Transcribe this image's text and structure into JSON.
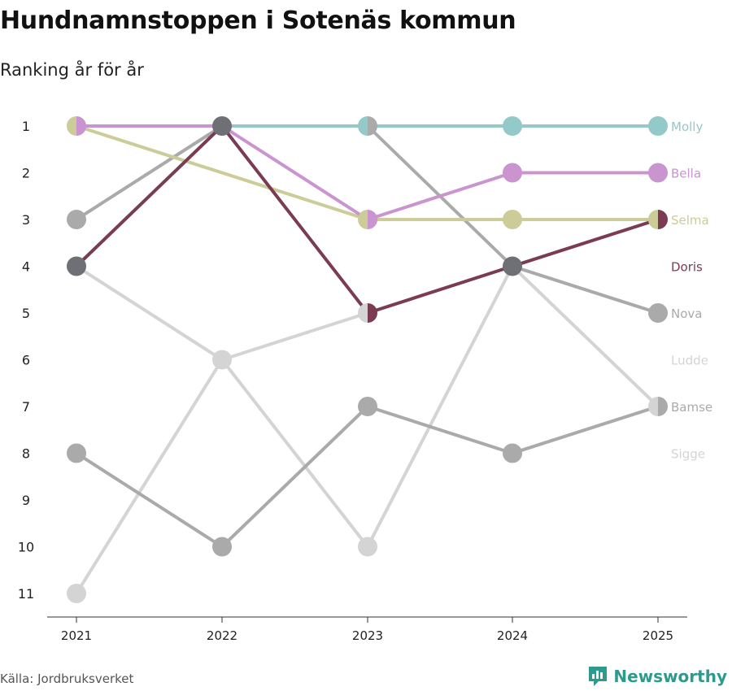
{
  "title": "Hundnamnstoppen i Sotenäs kommun",
  "subtitle": "Ranking år för år",
  "source": "Källa: Jordbruksverket",
  "brand": "Newsworthy",
  "chart_data": {
    "type": "line",
    "chart_kind": "bump",
    "x": [
      "2021",
      "2022",
      "2023",
      "2024",
      "2025"
    ],
    "y_ticks": [
      "1",
      "2",
      "3",
      "4",
      "5",
      "6",
      "7",
      "8",
      "9",
      "10",
      "11"
    ],
    "ylim": [
      1,
      11
    ],
    "y_reversed": true,
    "grid": false,
    "series": [
      {
        "name": "Molly",
        "color": "#93c9c9",
        "values": [
          4,
          1,
          1,
          1,
          1
        ]
      },
      {
        "name": "Bella",
        "color": "#c994cf",
        "values": [
          1,
          1,
          3,
          2,
          2
        ]
      },
      {
        "name": "Selma",
        "color": "#cccc99",
        "values": [
          1,
          null,
          3,
          3,
          3
        ]
      },
      {
        "name": "Doris",
        "color": "#7b3b52",
        "values": [
          4,
          1,
          5,
          4,
          3
        ]
      },
      {
        "name": "Nova",
        "color": "#aaaaaa",
        "values": [
          3,
          1,
          1,
          4,
          5
        ]
      },
      {
        "name": "Ludde",
        "color": "#d4d4d4",
        "values": [
          11,
          6,
          5,
          null,
          null
        ]
      },
      {
        "name": "Bamse",
        "color": "#aaaaaa",
        "values": [
          8,
          10,
          7,
          8,
          7
        ]
      },
      {
        "name": "Sigge",
        "color": "#d4d4d4",
        "values": [
          4,
          6,
          10,
          4,
          7
        ]
      }
    ],
    "label_colors": {
      "Molly": "#93c9c9",
      "Bella": "#c994cf",
      "Selma": "#cccc99",
      "Doris": "#7b3b52",
      "Nova": "#aaaaaa",
      "Ludde": "#d4d4d4",
      "Bamse": "#aaaaaa",
      "Sigge": "#d4d4d4"
    },
    "label_order": [
      "Molly",
      "Bella",
      "Selma",
      "Doris",
      "Nova",
      "Ludde",
      "Bamse",
      "Sigge"
    ],
    "tied_marker_color": "#6f6f76"
  }
}
